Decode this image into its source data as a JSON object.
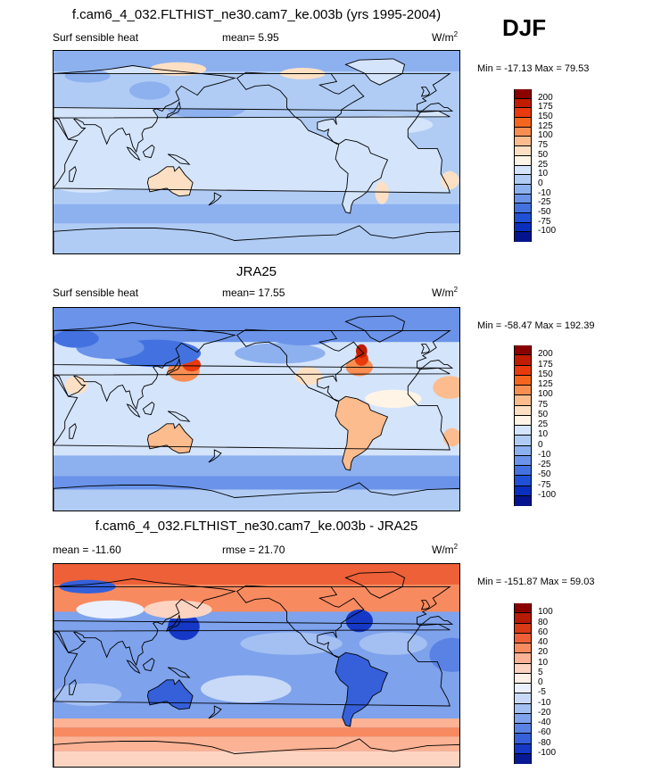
{
  "page": {
    "season": "DJF"
  },
  "panels": [
    {
      "title": "f.cam6_4_032.FLTHIST_ne30.cam7_ke.003b (yrs 1995-2004)",
      "left_label": "Surf sensible heat",
      "center_label": "mean=  5.95",
      "units_base": "W/m",
      "units_sup": "2",
      "minmax": "Min = -17.13 Max =  79.53",
      "colorbar_levels": [
        "200",
        "175",
        "150",
        "125",
        "100",
        "75",
        "50",
        "25",
        "10",
        "0",
        "-10",
        "-25",
        "-50",
        "-75",
        "-100"
      ],
      "colorbar_colors": [
        "#8b0000",
        "#c01c00",
        "#e83a0c",
        "#f5651e",
        "#f98e52",
        "#fcbc8e",
        "#fde0c4",
        "#fff4e6",
        "#d4e4fb",
        "#b0ccf5",
        "#8db0ef",
        "#6a93e9",
        "#4372e0",
        "#2050d6",
        "#0a2fbf",
        "#05148e"
      ],
      "map_style": "model"
    },
    {
      "title": "JRA25",
      "left_label": "Surf sensible heat",
      "center_label": "mean=  17.55",
      "units_base": "W/m",
      "units_sup": "2",
      "minmax": "Min = -58.47 Max = 192.39",
      "colorbar_levels": [
        "200",
        "175",
        "150",
        "125",
        "100",
        "75",
        "50",
        "25",
        "10",
        "0",
        "-10",
        "-25",
        "-50",
        "-75",
        "-100"
      ],
      "colorbar_colors": [
        "#8b0000",
        "#c01c00",
        "#e83a0c",
        "#f5651e",
        "#f98e52",
        "#fcbc8e",
        "#fde0c4",
        "#fff4e6",
        "#d4e4fb",
        "#b0ccf5",
        "#8db0ef",
        "#6a93e9",
        "#4372e0",
        "#2050d6",
        "#0a2fbf",
        "#05148e"
      ],
      "map_style": "obs"
    },
    {
      "title": "f.cam6_4_032.FLTHIST_ne30.cam7_ke.003b - JRA25",
      "left_label": "mean = -11.60",
      "center_label": "rmse =  21.70",
      "units_base": "W/m",
      "units_sup": "2",
      "minmax": "Min = -151.87 Max =  59.03",
      "colorbar_levels": [
        "100",
        "80",
        "60",
        "40",
        "20",
        "10",
        "5",
        "0",
        "-5",
        "-10",
        "-20",
        "-40",
        "-60",
        "-80",
        "-100"
      ],
      "colorbar_colors": [
        "#8b0000",
        "#b81a08",
        "#d93a18",
        "#ee6038",
        "#f88a60",
        "#fcb294",
        "#fdd4c2",
        "#fff0e8",
        "#eaf0fd",
        "#c8daf8",
        "#a4c0f2",
        "#7ea2ec",
        "#5a82e4",
        "#3560da",
        "#1638c6",
        "#061a96"
      ],
      "map_style": "diff"
    }
  ],
  "chart_data": [
    {
      "type": "heatmap",
      "title": "f.cam6_4_032.FLTHIST_ne30.cam7_ke.003b (yrs 1995-2004)",
      "variable": "Surf sensible heat",
      "units": "W/m2",
      "mean": 5.95,
      "min": -17.13,
      "max": 79.53,
      "contour_levels": [
        -100,
        -75,
        -50,
        -25,
        -10,
        0,
        10,
        25,
        50,
        75,
        100,
        125,
        150,
        175,
        200
      ]
    },
    {
      "type": "heatmap",
      "title": "JRA25",
      "variable": "Surf sensible heat",
      "units": "W/m2",
      "mean": 17.55,
      "min": -58.47,
      "max": 192.39,
      "contour_levels": [
        -100,
        -75,
        -50,
        -25,
        -10,
        0,
        10,
        25,
        50,
        75,
        100,
        125,
        150,
        175,
        200
      ]
    },
    {
      "type": "heatmap",
      "title": "f.cam6_4_032.FLTHIST_ne30.cam7_ke.003b - JRA25",
      "units": "W/m2",
      "mean": -11.6,
      "rmse": 21.7,
      "min": -151.87,
      "max": 59.03,
      "contour_levels": [
        -100,
        -80,
        -60,
        -40,
        -20,
        -10,
        -5,
        0,
        5,
        10,
        20,
        40,
        60,
        80,
        100
      ]
    }
  ]
}
